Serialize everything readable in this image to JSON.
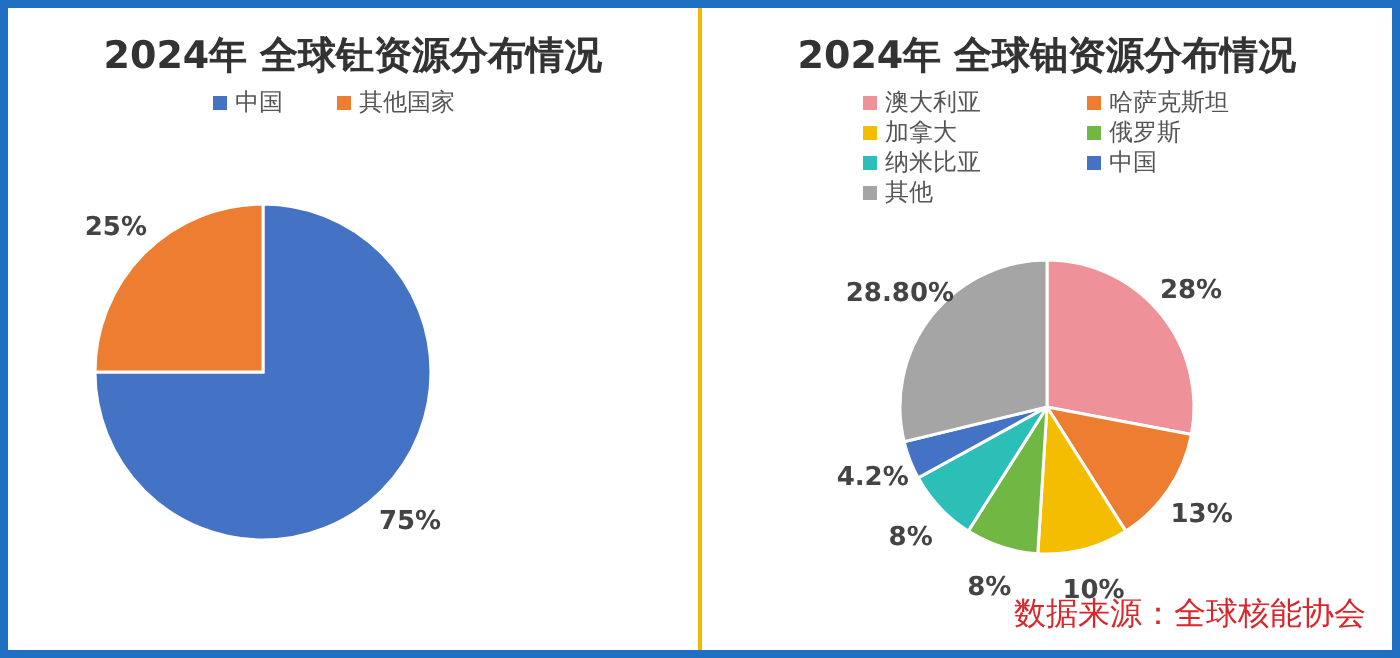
{
  "chart_data": [
    {
      "type": "pie",
      "title": "2024年 全球钍资源分布情况",
      "categories": [
        "中国",
        "其他国家"
      ],
      "values": [
        75,
        25
      ],
      "colors": [
        "#4472c4",
        "#ed7d31"
      ],
      "value_labels": [
        "75%",
        "25%"
      ],
      "legend": "top"
    },
    {
      "type": "pie",
      "title": "2024年 全球铀资源分布情况",
      "categories": [
        "澳大利亚",
        "哈萨克斯坦",
        "加拿大",
        "俄罗斯",
        "纳米比亚",
        "中国",
        "其他"
      ],
      "values": [
        28,
        13,
        10,
        8,
        8,
        4.2,
        28.8
      ],
      "colors": [
        "#ef9199",
        "#ed7d31",
        "#f5bd00",
        "#70b843",
        "#2cbfb7",
        "#4472c4",
        "#a5a5a5"
      ],
      "value_labels": [
        "28%",
        "13%",
        "10%",
        "8%",
        "8%",
        "4.2%",
        "28.80%"
      ],
      "legend": "top",
      "annotations": [
        "数据来源：全球核能协会"
      ]
    }
  ]
}
